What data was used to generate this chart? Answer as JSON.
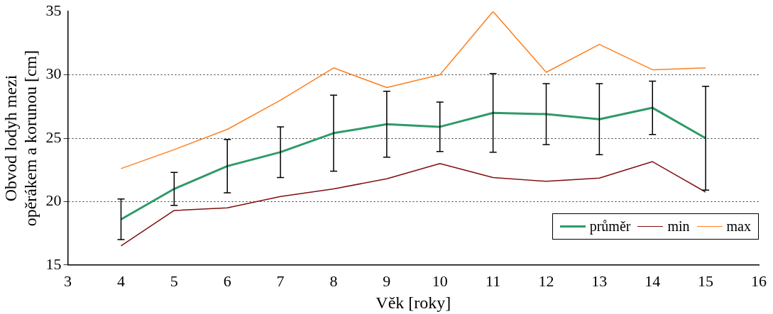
{
  "chart_data": {
    "type": "line",
    "xlabel": "Věk [roky]",
    "ylabel": "Obvod lodyh mezi opěrákem a korunou [cm]",
    "x": [
      4,
      5,
      6,
      7,
      8,
      9,
      10,
      11,
      12,
      13,
      14,
      15
    ],
    "series": [
      {
        "name": "průměr",
        "color": "#2e9a68",
        "values": [
          18.6,
          21.0,
          22.8,
          23.9,
          25.4,
          26.1,
          25.9,
          27.0,
          26.9,
          26.5,
          27.4,
          25.0
        ],
        "errors": [
          1.6,
          1.3,
          2.1,
          2.0,
          3.0,
          2.6,
          1.95,
          3.1,
          2.4,
          2.8,
          2.1,
          4.1
        ]
      },
      {
        "name": "min",
        "color": "#7f0f0f",
        "values": [
          16.5,
          19.3,
          19.5,
          20.4,
          21.0,
          21.8,
          23.0,
          21.9,
          21.6,
          21.85,
          23.15,
          20.75
        ]
      },
      {
        "name": "max",
        "color": "#ff7f1e",
        "values": [
          22.6,
          24.1,
          25.7,
          28.0,
          30.55,
          29.0,
          30.0,
          35.0,
          30.2,
          32.4,
          30.4,
          30.55
        ]
      }
    ],
    "xlim": [
      3,
      16
    ],
    "xticks": [
      3,
      4,
      5,
      6,
      7,
      8,
      9,
      10,
      11,
      12,
      13,
      14,
      15,
      16
    ],
    "ylim": [
      15,
      35
    ],
    "yticks": [
      15,
      20,
      25,
      30,
      35
    ],
    "grid": "y",
    "legend": "bottom right",
    "marker": "none",
    "line_style": "solid"
  }
}
